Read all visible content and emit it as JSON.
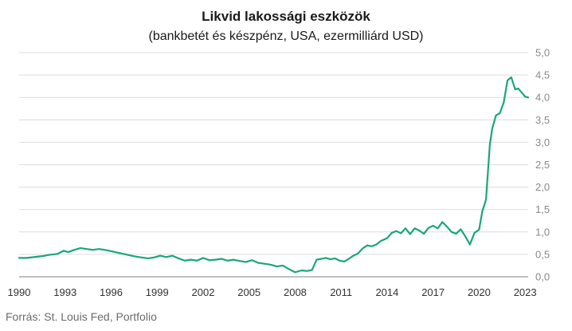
{
  "chart_data": {
    "type": "line",
    "title": "Likvid lakossági eszközök",
    "subtitle": "(bankbetét és készpénz, USA, ezermilliárd USD)",
    "xlabel": "",
    "ylabel": "",
    "xlim": [
      1990,
      2023.2
    ],
    "ylim": [
      0,
      5
    ],
    "grid": true,
    "y_axis_side": "right",
    "line_color": "#1aa67a",
    "x_tick_labels": [
      "1990",
      "1993",
      "1996",
      "1999",
      "2002",
      "2005",
      "2008",
      "2011",
      "2014",
      "2017",
      "2020",
      "2023"
    ],
    "y_tick_labels": [
      "0,0",
      "0,5",
      "1,0",
      "1,5",
      "2,0",
      "2,5",
      "3,0",
      "3,5",
      "4,0",
      "4,5",
      "5,0"
    ],
    "series": [
      {
        "x": [
          1990,
          1990.5,
          1991,
          1991.5,
          1992,
          1992.5,
          1992.9,
          1993.2,
          1993.6,
          1994,
          1994.4,
          1994.8,
          1995.2,
          1995.6,
          1996,
          1996.4,
          1996.8,
          1997.2,
          1997.6,
          1998,
          1998.4,
          1998.8,
          1999.2,
          1999.6,
          2000,
          2000.4,
          2000.8,
          2001.2,
          2001.6,
          2002,
          2002.4,
          2002.8,
          2003.2,
          2003.6,
          2004,
          2004.4,
          2004.8,
          2005.2,
          2005.6,
          2006,
          2006.4,
          2006.8,
          2007.2,
          2007.6,
          2008,
          2008.4,
          2008.8,
          2009.1,
          2009.4,
          2009.7,
          2010,
          2010.3,
          2010.6,
          2010.9,
          2011.2,
          2011.5,
          2011.8,
          2012.1,
          2012.4,
          2012.7,
          2013,
          2013.3,
          2013.6,
          2014,
          2014.3,
          2014.6,
          2014.9,
          2015.2,
          2015.5,
          2015.8,
          2016.1,
          2016.4,
          2016.7,
          2017,
          2017.3,
          2017.6,
          2017.9,
          2018.2,
          2018.5,
          2018.8,
          2019.1,
          2019.4,
          2019.7,
          2020.0,
          2020.2,
          2020.45,
          2020.7,
          2020.85,
          2021.1,
          2021.35,
          2021.6,
          2021.85,
          2022.1,
          2022.35,
          2022.55,
          2022.75,
          2023.0,
          2023.2
        ],
        "y": [
          0.42,
          0.42,
          0.44,
          0.46,
          0.49,
          0.51,
          0.58,
          0.55,
          0.6,
          0.64,
          0.62,
          0.6,
          0.62,
          0.6,
          0.57,
          0.54,
          0.51,
          0.48,
          0.45,
          0.43,
          0.41,
          0.43,
          0.47,
          0.44,
          0.47,
          0.41,
          0.36,
          0.38,
          0.36,
          0.42,
          0.37,
          0.38,
          0.4,
          0.36,
          0.38,
          0.35,
          0.33,
          0.37,
          0.31,
          0.29,
          0.27,
          0.23,
          0.25,
          0.17,
          0.1,
          0.14,
          0.13,
          0.15,
          0.38,
          0.4,
          0.42,
          0.39,
          0.41,
          0.36,
          0.34,
          0.4,
          0.47,
          0.52,
          0.63,
          0.7,
          0.68,
          0.72,
          0.8,
          0.86,
          0.98,
          1.02,
          0.97,
          1.08,
          0.95,
          1.08,
          1.03,
          0.96,
          1.09,
          1.14,
          1.08,
          1.22,
          1.12,
          1.0,
          0.96,
          1.06,
          0.9,
          0.72,
          0.98,
          1.05,
          1.45,
          1.72,
          2.95,
          3.3,
          3.6,
          3.65,
          3.88,
          4.38,
          4.45,
          4.18,
          4.2,
          4.12,
          4.02,
          4.0
        ]
      }
    ]
  },
  "footer": {
    "source": "Forrás: St. Louis Fed, Portfolio"
  }
}
